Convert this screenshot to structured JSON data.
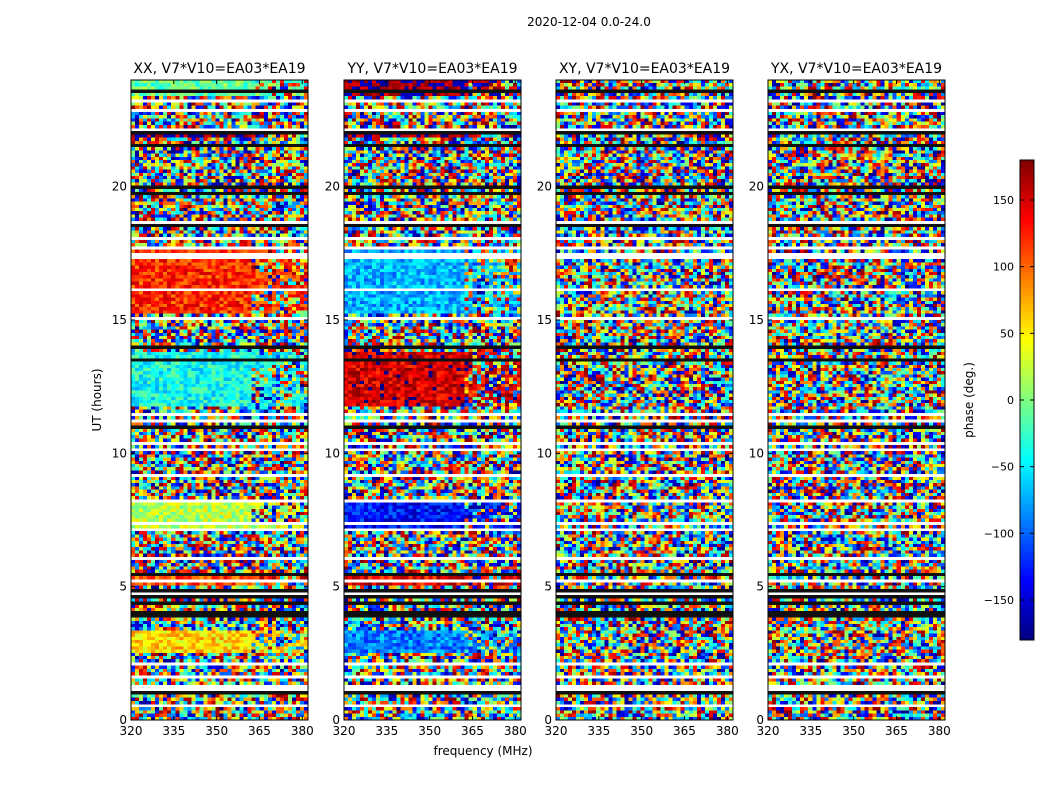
{
  "figure": {
    "suptitle": "2020-12-04 0.0-24.0",
    "ylabel": "UT (hours)",
    "xlabel": "frequency (MHz)",
    "colorbar_label": "phase (deg.)"
  },
  "chart_data": {
    "type": "heatmap",
    "title": "2020-12-04 0.0-24.0",
    "xlabel": "frequency (MHz)",
    "ylabel": "UT (hours)",
    "xlim": [
      320,
      382
    ],
    "ylim": [
      0,
      24
    ],
    "x_ticks": [
      320,
      335,
      350,
      365,
      380
    ],
    "y_ticks": [
      0,
      5,
      10,
      15,
      20
    ],
    "colormap": "jet",
    "colorbar": {
      "label": "phase (deg.)",
      "range": [
        -180,
        180
      ],
      "ticks": [
        150,
        100,
        50,
        0,
        -50,
        -100,
        -150
      ]
    },
    "panels": [
      {
        "title": "XX, V7*V10=EA03*EA19"
      },
      {
        "title": "YY, V7*V10=EA03*EA19"
      },
      {
        "title": "XY, V7*V10=EA03*EA19"
      },
      {
        "title": "YX, V7*V10=EA03*EA19"
      }
    ]
  }
}
